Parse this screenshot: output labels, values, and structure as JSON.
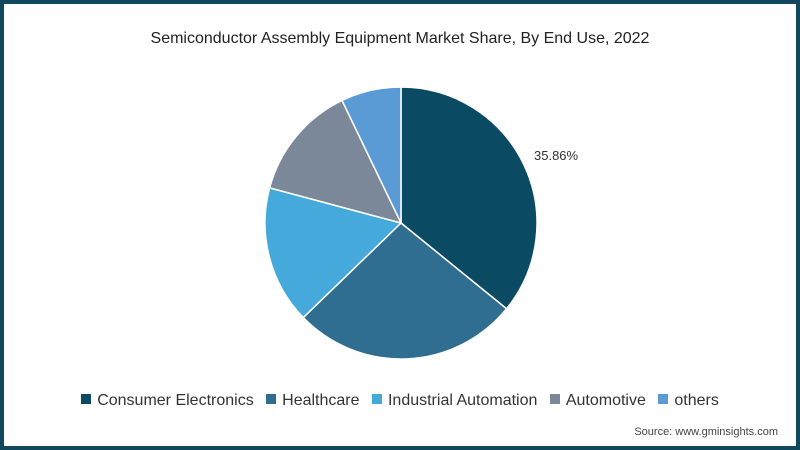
{
  "title": "Semiconductor Assembly Equipment Market Share, By End Use, 2022",
  "source": "Source: www.gminsights.com",
  "frame_color": "#12485e",
  "chart_data": {
    "type": "pie",
    "title": "Semiconductor Assembly Equipment Market Share, By End Use, 2022",
    "categories": [
      "Consumer Electronics",
      "Healthcare",
      "Industrial Automation",
      "Automotive",
      "others"
    ],
    "values": [
      35.86,
      26.9,
      16.4,
      13.7,
      7.14
    ],
    "colors": [
      "#0b4a63",
      "#2f6e91",
      "#45a9dc",
      "#7b8899",
      "#5b9bd5"
    ],
    "data_labels": [
      {
        "category": "Consumer Electronics",
        "text": "35.86%"
      }
    ],
    "start_angle": 0,
    "direction": "clockwise",
    "legend_position": "bottom"
  },
  "legend": {
    "items": [
      {
        "label": "Consumer Electronics",
        "color": "#0b4a63"
      },
      {
        "label": "Healthcare",
        "color": "#2f6e91"
      },
      {
        "label": "Industrial Automation",
        "color": "#45a9dc"
      },
      {
        "label": "Automotive",
        "color": "#7b8899"
      },
      {
        "label": "others",
        "color": "#5b9bd5"
      }
    ]
  },
  "label": "35.86%"
}
